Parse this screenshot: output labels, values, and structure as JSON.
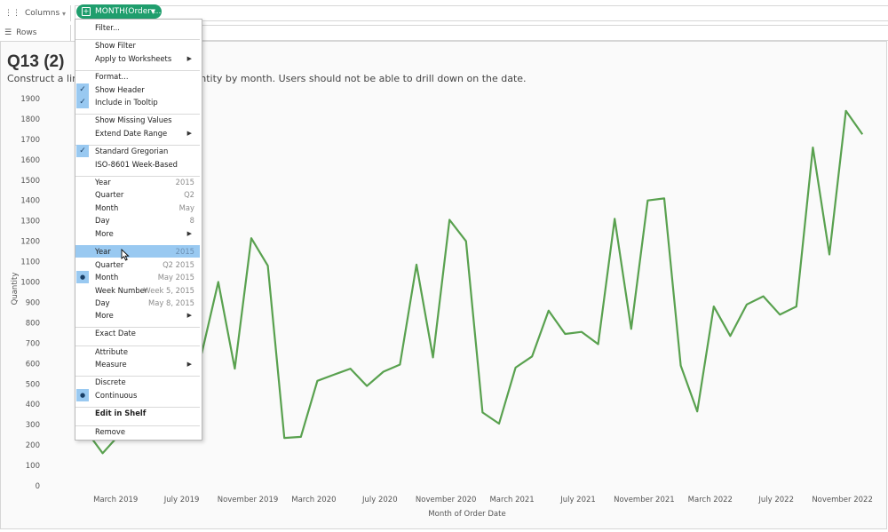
{
  "shelves": {
    "columns_label": "Columns",
    "rows_label": "Rows",
    "pill_label": "MONTH(Order ..."
  },
  "sheet": {
    "title": "Q13 (2)",
    "caption": "Construct a line graph showing the quantity by month.  Users should not be able to drill down on the date."
  },
  "menu": {
    "items": [
      {
        "label": "Filter..."
      },
      {
        "label": "Show Filter"
      },
      {
        "label": "Apply to Worksheets",
        "submenu": true
      },
      {
        "label": "Format..."
      },
      {
        "label": "Show Header",
        "checked": true
      },
      {
        "label": "Include in Tooltip",
        "checked": true
      },
      {
        "label": "Show Missing Values"
      },
      {
        "label": "Extend Date Range",
        "submenu": true
      },
      {
        "label": "Standard Gregorian",
        "checked": true
      },
      {
        "label": "ISO-8601 Week-Based"
      },
      {
        "label": "Year",
        "value": "2015"
      },
      {
        "label": "Quarter",
        "value": "Q2"
      },
      {
        "label": "Month",
        "value": "May"
      },
      {
        "label": "Day",
        "value": "8"
      },
      {
        "label": "More",
        "submenu": true
      },
      {
        "label": "Year",
        "value": "2015",
        "highlighted": true
      },
      {
        "label": "Quarter",
        "value": "Q2 2015"
      },
      {
        "label": "Month",
        "value": "May 2015",
        "bullet": true
      },
      {
        "label": "Week Number",
        "value": "Week 5, 2015"
      },
      {
        "label": "Day",
        "value": "May 8, 2015"
      },
      {
        "label": "More",
        "submenu": true
      },
      {
        "label": "Exact Date"
      },
      {
        "label": "Attribute"
      },
      {
        "label": "Measure",
        "submenu": true
      },
      {
        "label": "Discrete"
      },
      {
        "label": "Continuous",
        "bullet": true
      },
      {
        "label": "Edit in Shelf",
        "bold": true
      },
      {
        "label": "Remove"
      }
    ]
  },
  "colors": {
    "line": "#59a14f",
    "pill": "#1f9e6d",
    "menu_highlight": "#99c9f1"
  },
  "chart_data": {
    "type": "line",
    "title": "",
    "xlabel": "Month of Order Date",
    "ylabel": "Quantity",
    "ylim": [
      0,
      1900
    ],
    "y_ticks": [
      0,
      100,
      200,
      300,
      400,
      500,
      600,
      700,
      800,
      900,
      1000,
      1100,
      1200,
      1300,
      1400,
      1500,
      1600,
      1700,
      1800,
      1900
    ],
    "x_tick_labels": [
      "March 2019",
      "July 2019",
      "November 2019",
      "March 2020",
      "July 2020",
      "November 2020",
      "March 2021",
      "July 2021",
      "November 2021",
      "March 2022",
      "July 2022",
      "November 2022"
    ],
    "grid": false,
    "series": [
      {
        "x": [
          "2019-01",
          "2019-02",
          "2019-03",
          "2019-04",
          "2019-05",
          "2019-06",
          "2019-07",
          "2019-08",
          "2019-09",
          "2019-10",
          "2019-11",
          "2019-12",
          "2020-01",
          "2020-02",
          "2020-03",
          "2020-04",
          "2020-05",
          "2020-06",
          "2020-07",
          "2020-08",
          "2020-09",
          "2020-10",
          "2020-11",
          "2020-12",
          "2021-01",
          "2021-02",
          "2021-03",
          "2021-04",
          "2021-05",
          "2021-06",
          "2021-07",
          "2021-08",
          "2021-09",
          "2021-10",
          "2021-11",
          "2021-12",
          "2022-01",
          "2022-02",
          "2022-03",
          "2022-04",
          "2022-05",
          "2022-06",
          "2022-07",
          "2022-08",
          "2022-09",
          "2022-10",
          "2022-11",
          "2022-12"
        ],
        "values": [
          270,
          160,
          250,
          370,
          470,
          630,
          600,
          650,
          1000,
          575,
          1215,
          1080,
          235,
          240,
          515,
          545,
          575,
          490,
          560,
          595,
          1085,
          630,
          1305,
          1200,
          360,
          305,
          580,
          635,
          860,
          745,
          755,
          695,
          1310,
          770,
          1400,
          1410,
          590,
          365,
          880,
          735,
          890,
          930,
          840,
          880,
          1660,
          1135,
          1840,
          1725
        ]
      }
    ]
  }
}
